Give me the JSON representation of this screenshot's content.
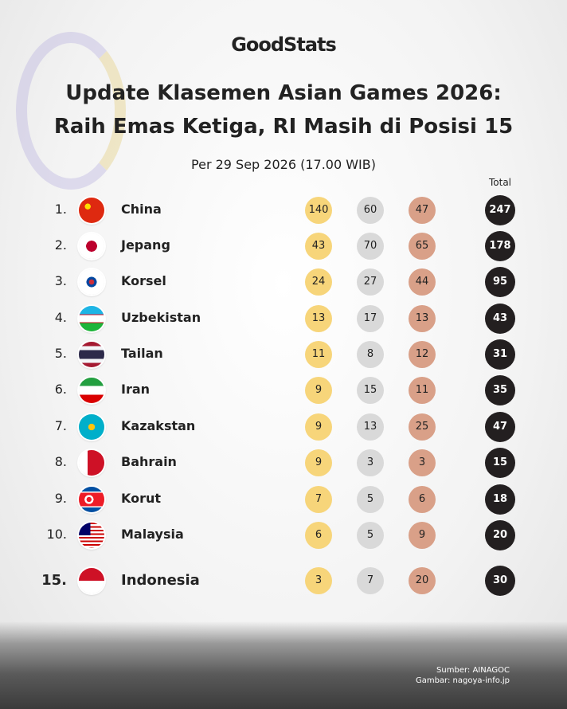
{
  "brand": "GoodStats",
  "header": {
    "title_line1": "Update Klasemen Asian Games 2026:",
    "title_line2": "Raih Emas Ketiga, RI Masih di Posisi 15",
    "subtitle": "Per 29 Sep 2026 (17.00 WIB)"
  },
  "table": {
    "total_header": "Total",
    "rows": [
      {
        "rank": "1.",
        "country": "China",
        "gold": 140,
        "silver": 60,
        "bronze": 47,
        "total": 247
      },
      {
        "rank": "2.",
        "country": "Jepang",
        "gold": 43,
        "silver": 70,
        "bronze": 65,
        "total": 178
      },
      {
        "rank": "3.",
        "country": "Korsel",
        "gold": 24,
        "silver": 27,
        "bronze": 44,
        "total": 95
      },
      {
        "rank": "4.",
        "country": "Uzbekistan",
        "gold": 13,
        "silver": 17,
        "bronze": 13,
        "total": 43
      },
      {
        "rank": "5.",
        "country": "Tailan",
        "gold": 11,
        "silver": 8,
        "bronze": 12,
        "total": 31
      },
      {
        "rank": "6.",
        "country": "Iran",
        "gold": 9,
        "silver": 15,
        "bronze": 11,
        "total": 35
      },
      {
        "rank": "7.",
        "country": "Kazakstan",
        "gold": 9,
        "silver": 13,
        "bronze": 25,
        "total": 47
      },
      {
        "rank": "8.",
        "country": "Bahrain",
        "gold": 9,
        "silver": 3,
        "bronze": 3,
        "total": 15
      },
      {
        "rank": "9.",
        "country": "Korut",
        "gold": 7,
        "silver": 5,
        "bronze": 6,
        "total": 18
      },
      {
        "rank": "10.",
        "country": "Malaysia",
        "gold": 6,
        "silver": 5,
        "bronze": 9,
        "total": 20
      },
      {
        "rank": "15.",
        "country": "Indonesia",
        "gold": 3,
        "silver": 7,
        "bronze": 20,
        "total": 30
      }
    ]
  },
  "footer": {
    "source": "Sumber: AINAGOC",
    "image_credit": "Gambar: nagoya-info.jp"
  }
}
